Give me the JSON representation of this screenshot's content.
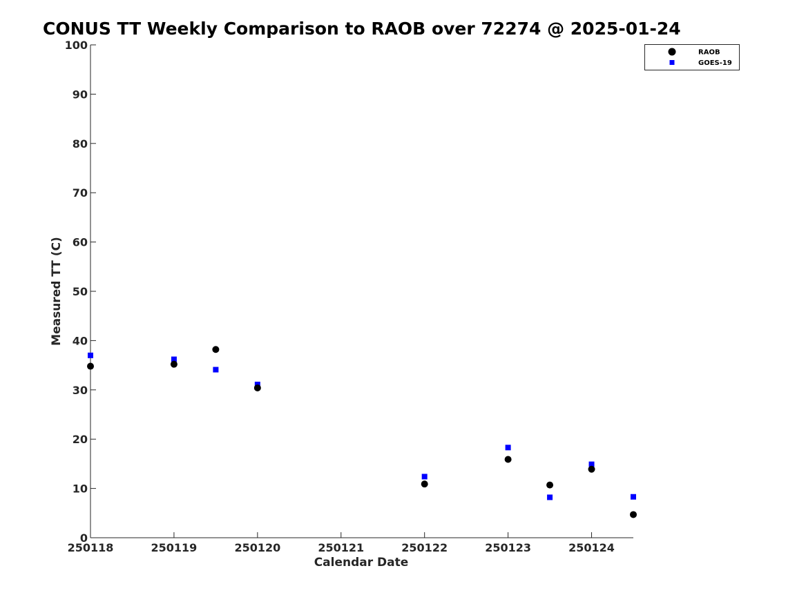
{
  "chart_data": {
    "type": "scatter",
    "title": "CONUS TT Weekly Comparison to RAOB over 72274 @ 2025-01-24",
    "xlabel": "Calendar Date",
    "ylabel": "Measured TT (C)",
    "xlim": [
      "250118",
      "250124.5"
    ],
    "ylim": [
      0,
      100
    ],
    "x_ticks": [
      "250118",
      "250119",
      "250120",
      "250121",
      "250122",
      "250123",
      "250124"
    ],
    "y_ticks": [
      0,
      10,
      20,
      30,
      40,
      50,
      60,
      70,
      80,
      90,
      100
    ],
    "grid": false,
    "legend_position": "top-right",
    "series": [
      {
        "name": "RAOB",
        "marker": "circle",
        "color": "#000000",
        "x": [
          250118.0,
          250119.0,
          250119.5,
          250120.0,
          250122.0,
          250123.0,
          250123.5,
          250124.0,
          250124.5
        ],
        "y": [
          34.8,
          35.2,
          38.2,
          30.4,
          10.9,
          15.9,
          10.7,
          13.9,
          4.7
        ]
      },
      {
        "name": "GOES-19",
        "marker": "square",
        "color": "#0000ff",
        "x": [
          250118.0,
          250119.0,
          250119.5,
          250120.0,
          250122.0,
          250123.0,
          250123.5,
          250124.0,
          250124.5
        ],
        "y": [
          37.0,
          36.2,
          34.1,
          31.1,
          12.4,
          18.3,
          8.2,
          14.9,
          8.3
        ]
      }
    ]
  }
}
